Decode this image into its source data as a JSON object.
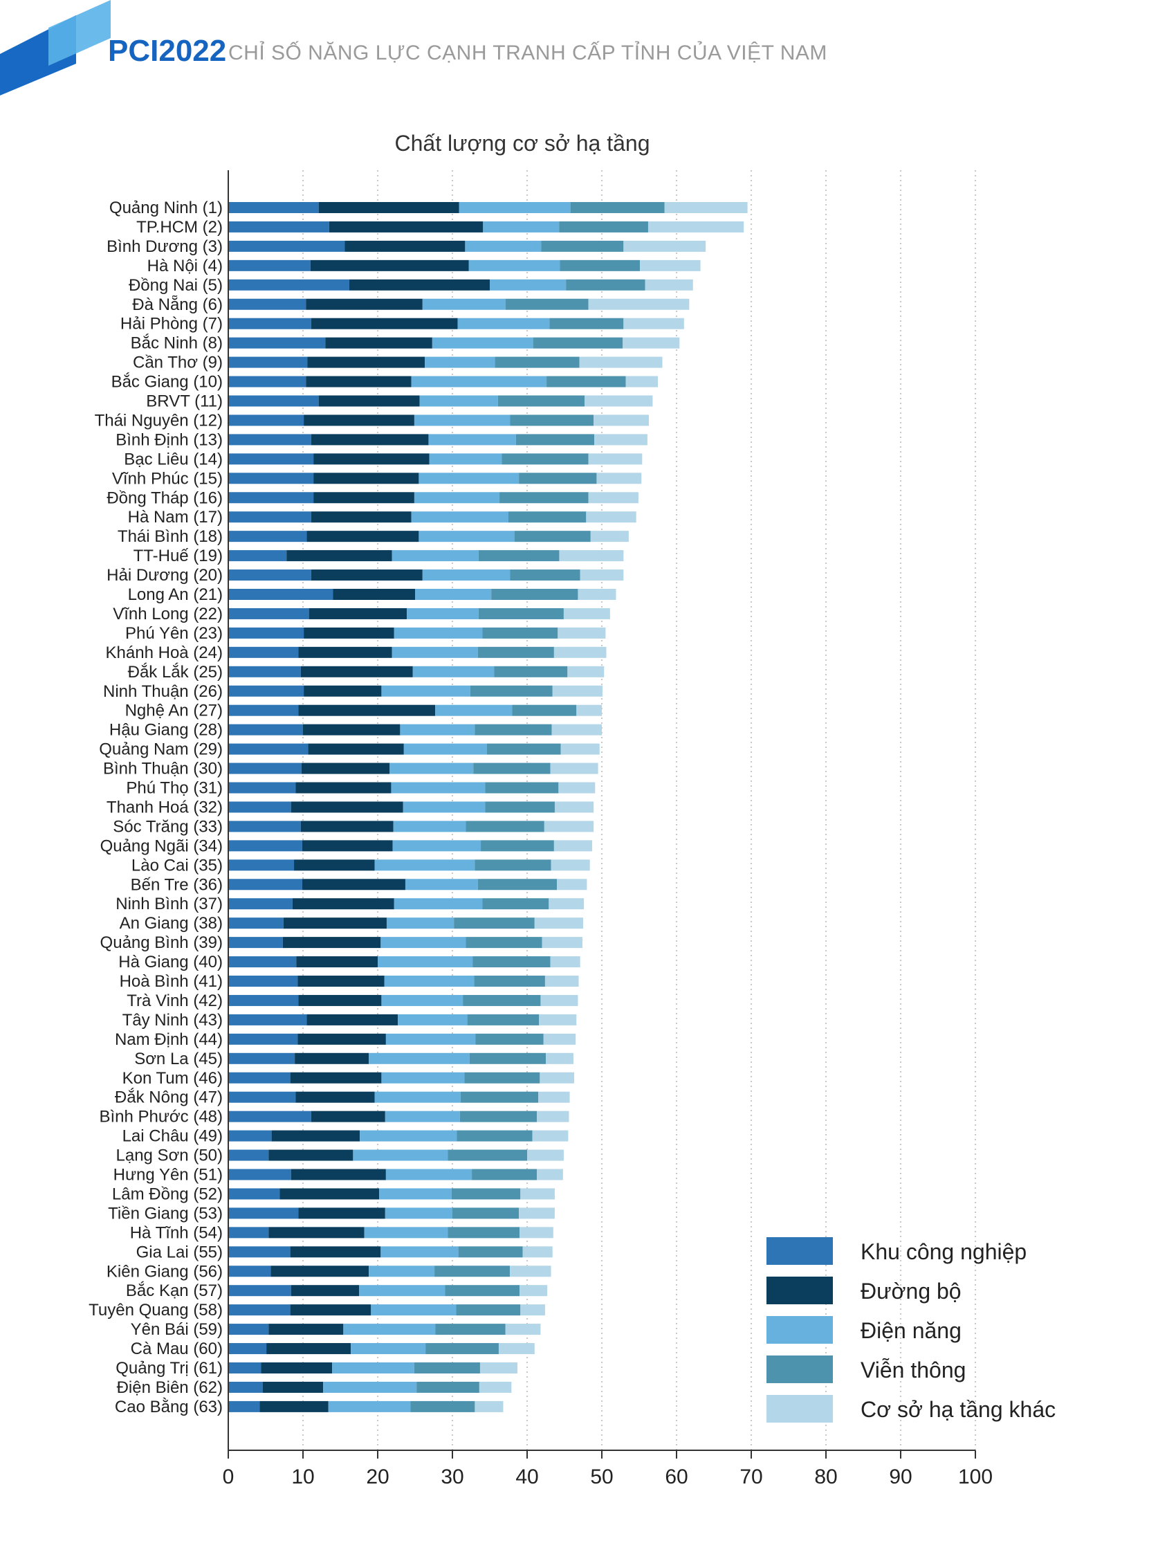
{
  "header": {
    "brand": "PCI2022",
    "subtitle": "CHỈ SỐ NĂNG LỰC CẠNH TRANH CẤP TỈNH CỦA VIỆT NAM"
  },
  "colors": {
    "brand_blue": "#1565c0",
    "series": [
      "#2e75b6",
      "#0b3d5c",
      "#67b1de",
      "#4d93ad",
      "#b3d6e8"
    ]
  },
  "chart_data": {
    "type": "bar",
    "orientation": "horizontal",
    "stacked": true,
    "title": "Chất lượng cơ sở hạ tầng",
    "xlabel": "",
    "ylabel": "",
    "xlim": [
      0,
      100
    ],
    "xticks": [
      0,
      10,
      20,
      30,
      40,
      50,
      60,
      70,
      80,
      90,
      100
    ],
    "grid": "vertical dotted",
    "legend_position": "bottom-right",
    "categories": [
      "Quảng Ninh (1)",
      "TP.HCM (2)",
      "Bình Dương (3)",
      "Hà Nội (4)",
      "Đồng Nai (5)",
      "Đà Nẵng (6)",
      "Hải Phòng (7)",
      "Bắc Ninh (8)",
      "Cần Thơ (9)",
      "Bắc Giang (10)",
      "BRVT (11)",
      "Thái Nguyên (12)",
      "Bình Định (13)",
      "Bạc Liêu (14)",
      "Vĩnh Phúc (15)",
      "Đồng Tháp (16)",
      "Hà Nam (17)",
      "Thái Bình (18)",
      "TT-Huế (19)",
      "Hải Dương (20)",
      "Long An (21)",
      "Vĩnh Long (22)",
      "Phú Yên (23)",
      "Khánh Hoà (24)",
      "Đắk Lắk (25)",
      "Ninh Thuận (26)",
      "Nghệ An (27)",
      "Hậu Giang (28)",
      "Quảng Nam (29)",
      "Bình Thuận (30)",
      "Phú Thọ (31)",
      "Thanh Hoá (32)",
      "Sóc Trăng (33)",
      "Quảng Ngãi (34)",
      "Lào Cai (35)",
      "Bến Tre (36)",
      "Ninh Bình (37)",
      "An Giang (38)",
      "Quảng Bình (39)",
      "Hà Giang (40)",
      "Hoà Bình (41)",
      "Trà Vinh (42)",
      "Tây Ninh (43)",
      "Nam Định (44)",
      "Sơn La (45)",
      "Kon Tum (46)",
      "Đắk Nông (47)",
      "Bình Phước (48)",
      "Lai Châu (49)",
      "Lạng Sơn (50)",
      "Hưng Yên (51)",
      "Lâm Đồng (52)",
      "Tiền Giang (53)",
      "Hà Tĩnh (54)",
      "Gia Lai (55)",
      "Kiên Giang (56)",
      "Bắc Kạn (57)",
      "Tuyên Quang (58)",
      "Yên Bái (59)",
      "Cà Mau (60)",
      "Quảng Trị (61)",
      "Điện Biên (62)",
      "Cao Bằng (63)"
    ],
    "series": [
      {
        "name": "Khu công nghiệp",
        "color": "#2e75b6",
        "values": [
          12.1,
          13.5,
          15.6,
          11.0,
          16.2,
          10.4,
          11.1,
          13.0,
          10.6,
          10.4,
          12.1,
          10.1,
          11.1,
          11.4,
          11.4,
          11.4,
          11.1,
          10.5,
          7.8,
          11.1,
          14.0,
          10.8,
          10.1,
          9.4,
          9.7,
          10.1,
          9.4,
          10.0,
          10.7,
          9.8,
          9.0,
          8.4,
          9.7,
          9.9,
          8.8,
          9.9,
          8.6,
          7.4,
          7.3,
          9.1,
          9.3,
          9.4,
          10.5,
          9.3,
          8.9,
          8.3,
          9.0,
          11.1,
          5.8,
          5.4,
          8.4,
          6.9,
          9.4,
          5.4,
          8.3,
          5.7,
          8.4,
          8.3,
          5.4,
          5.1,
          4.4,
          4.6,
          4.2
        ]
      },
      {
        "name": "Đường bộ",
        "color": "#0b3d5c",
        "values": [
          18.8,
          20.6,
          16.1,
          21.2,
          18.8,
          15.6,
          19.6,
          14.3,
          15.7,
          14.1,
          13.5,
          14.8,
          15.7,
          15.5,
          14.1,
          13.5,
          13.4,
          15.0,
          14.1,
          14.9,
          11.0,
          13.1,
          12.1,
          12.5,
          15.0,
          10.4,
          18.3,
          13.0,
          12.8,
          11.8,
          12.8,
          15.0,
          12.4,
          12.1,
          10.8,
          13.8,
          13.6,
          13.8,
          13.1,
          10.9,
          11.6,
          11.1,
          12.2,
          11.8,
          9.9,
          12.2,
          10.6,
          9.9,
          11.8,
          11.3,
          12.7,
          13.3,
          11.6,
          12.8,
          12.1,
          13.1,
          9.1,
          10.8,
          10.0,
          11.3,
          9.5,
          8.1,
          9.2
        ]
      },
      {
        "name": "Điện năng",
        "color": "#67b1de",
        "values": [
          14.9,
          10.2,
          10.2,
          12.2,
          10.2,
          11.1,
          12.3,
          13.5,
          9.4,
          18.1,
          10.5,
          12.8,
          11.7,
          9.7,
          13.4,
          11.4,
          13.0,
          12.8,
          11.6,
          11.7,
          10.2,
          9.6,
          11.8,
          11.5,
          10.9,
          11.9,
          10.3,
          10.0,
          11.1,
          11.2,
          12.6,
          11.0,
          9.7,
          11.8,
          13.4,
          9.7,
          11.8,
          9.0,
          11.4,
          12.7,
          12.0,
          10.9,
          9.3,
          12.0,
          13.5,
          11.1,
          11.5,
          10.0,
          13.0,
          12.7,
          11.5,
          9.7,
          9.0,
          11.2,
          10.4,
          8.8,
          11.5,
          11.4,
          12.3,
          10.0,
          11.0,
          12.5,
          11.0
        ]
      },
      {
        "name": "Viễn thông",
        "color": "#4d93ad",
        "values": [
          12.6,
          11.9,
          11.0,
          10.7,
          10.6,
          11.1,
          9.9,
          12.0,
          11.3,
          10.6,
          11.6,
          11.2,
          10.5,
          11.6,
          10.4,
          11.9,
          10.4,
          10.2,
          10.8,
          9.4,
          11.6,
          11.4,
          10.1,
          10.2,
          9.8,
          11.0,
          8.6,
          10.3,
          9.9,
          10.3,
          9.8,
          9.3,
          10.5,
          9.8,
          10.2,
          10.6,
          8.9,
          10.8,
          10.2,
          10.4,
          9.5,
          10.4,
          9.6,
          9.1,
          10.2,
          10.1,
          10.4,
          10.3,
          10.1,
          10.6,
          8.7,
          9.2,
          8.9,
          9.6,
          8.6,
          10.1,
          10.0,
          8.6,
          9.4,
          9.8,
          8.8,
          8.4,
          8.6
        ]
      },
      {
        "name": "Cơ sở hạ tầng khác",
        "color": "#b3d6e8",
        "values": [
          11.1,
          12.8,
          11.0,
          8.1,
          6.4,
          13.5,
          8.1,
          7.6,
          11.1,
          4.3,
          9.1,
          7.4,
          7.1,
          7.2,
          6.0,
          6.7,
          6.7,
          5.1,
          8.6,
          5.8,
          5.1,
          6.2,
          6.4,
          7.0,
          4.9,
          6.7,
          3.4,
          6.7,
          5.2,
          6.4,
          4.9,
          5.2,
          6.6,
          5.1,
          5.2,
          4.0,
          4.7,
          6.5,
          5.4,
          4.0,
          4.5,
          5.0,
          5.0,
          4.3,
          3.7,
          4.6,
          4.2,
          4.3,
          4.8,
          4.9,
          3.5,
          4.6,
          4.8,
          4.5,
          4.0,
          5.5,
          3.7,
          3.3,
          4.7,
          4.8,
          5.0,
          4.3,
          3.8
        ]
      }
    ]
  }
}
